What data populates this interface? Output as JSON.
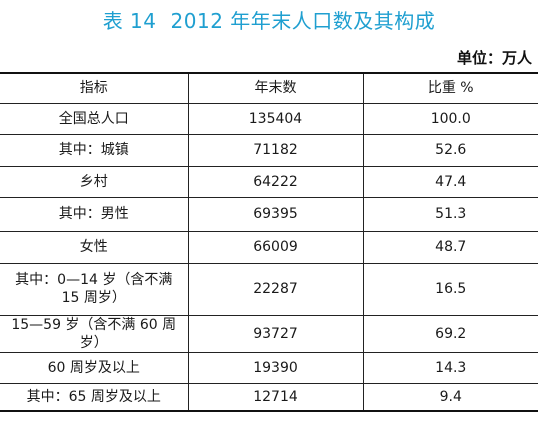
{
  "title": {
    "label": "表 14",
    "text": "2012 年年末人口数及其构成"
  },
  "unit": "单位：万人",
  "table": {
    "headers": [
      "指标",
      "年末数",
      "比重 %"
    ],
    "rows": [
      {
        "indicator": "全国总人口",
        "value": "135404",
        "share": "100.0"
      },
      {
        "indicator": "其中：城镇",
        "value": "71182",
        "share": "52.6"
      },
      {
        "indicator": "乡村",
        "value": "64222",
        "share": "47.4"
      },
      {
        "indicator": "其中：男性",
        "value": "69395",
        "share": "51.3"
      },
      {
        "indicator": "女性",
        "value": "66009",
        "share": "48.7"
      },
      {
        "indicator_line1": "其中：0—14 岁（含不满",
        "indicator_line2": "15 周岁）",
        "value": "22287",
        "share": "16.5"
      },
      {
        "indicator": "15—59 岁（含不满 60 周岁）",
        "value": "93727",
        "share": "69.2"
      },
      {
        "indicator": "60 周岁及以上",
        "value": "19390",
        "share": "14.3"
      },
      {
        "indicator": "其中：65 周岁及以上",
        "value": "12714",
        "share": "9.4"
      }
    ]
  }
}
